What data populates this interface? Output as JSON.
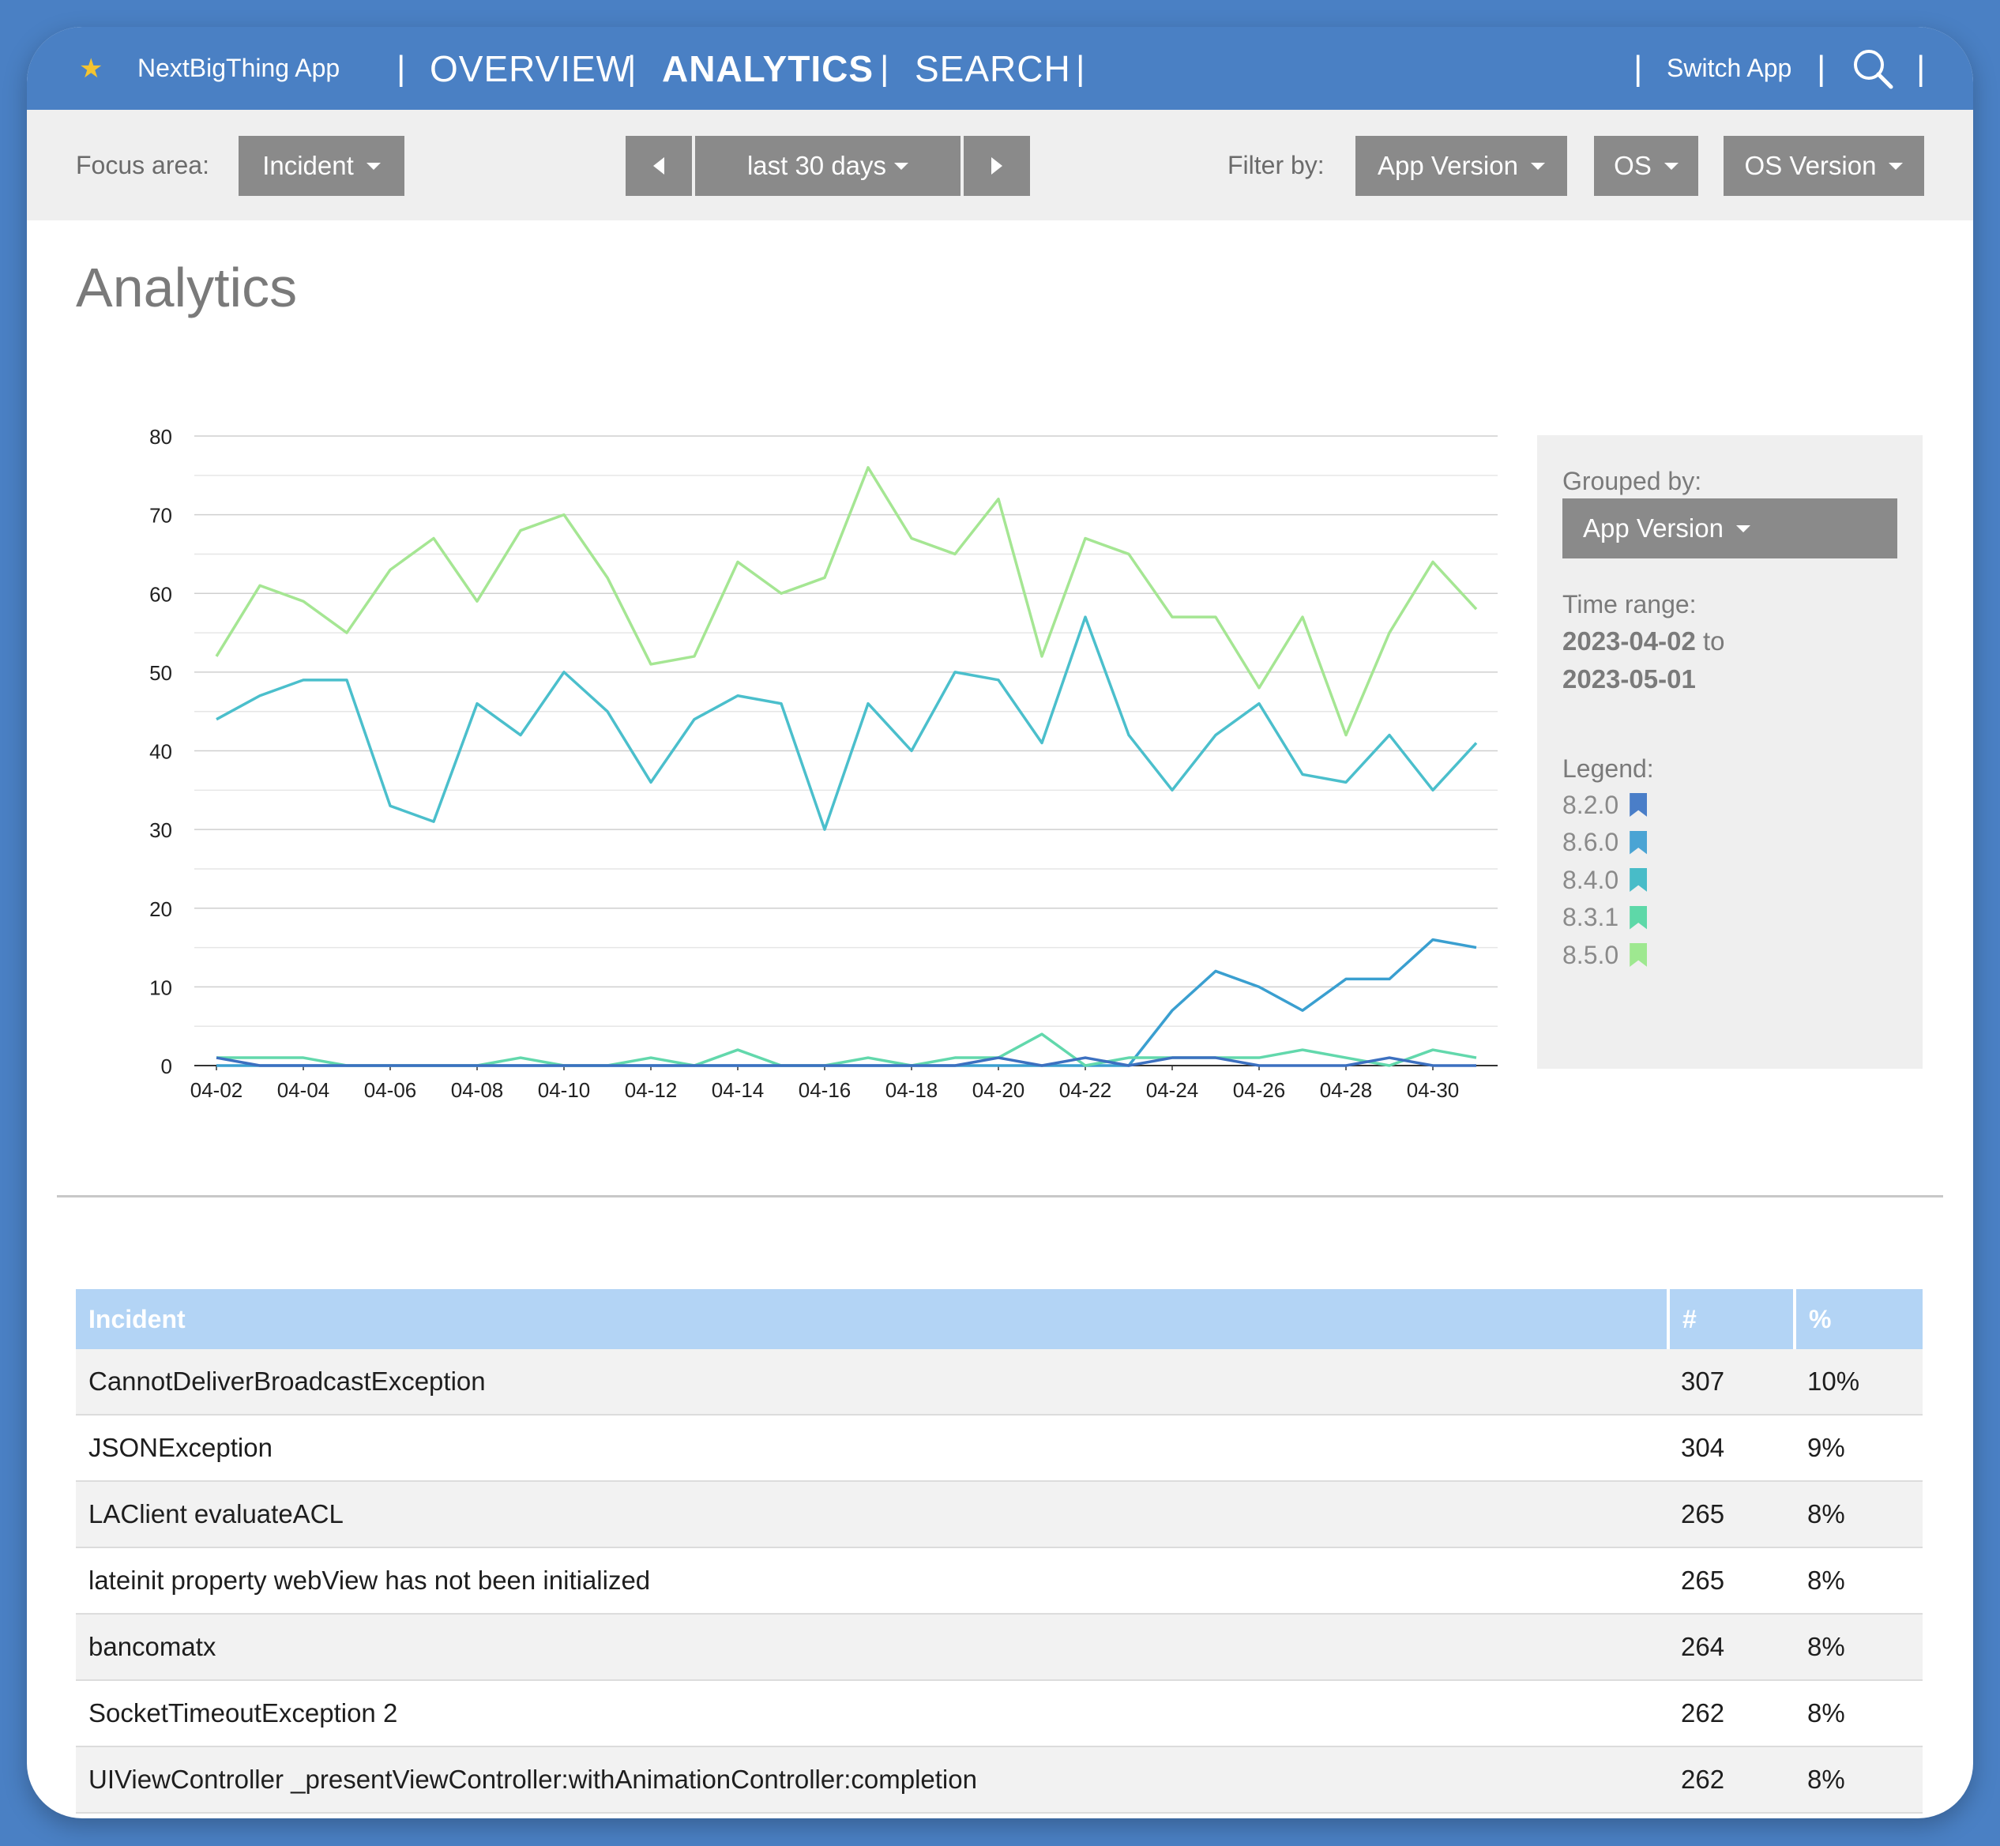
{
  "app": {
    "name": "NextBigThing App",
    "star_icon": "star-icon"
  },
  "nav": {
    "items": [
      "OVERVIEW",
      "ANALYTICS",
      "SEARCH"
    ],
    "active": "ANALYTICS",
    "switch_label": "Switch App",
    "search_icon": "search-icon"
  },
  "filters": {
    "focus_label": "Focus area:",
    "focus_value": "Incident",
    "period_value": "last 30 days",
    "filter_label": "Filter by:",
    "filter_buttons": [
      "App Version",
      "OS",
      "OS Version"
    ]
  },
  "page": {
    "title": "Analytics"
  },
  "side": {
    "grouped_label": "Grouped by:",
    "grouped_value": "App Version",
    "time_label": "Time range:",
    "time_start": "2023-04-02",
    "time_to": "to",
    "time_end": "2023-05-01",
    "legend_label": "Legend:",
    "legend": [
      {
        "name": "8.2.0",
        "color": "#4a7ec8"
      },
      {
        "name": "8.6.0",
        "color": "#4aa4d4"
      },
      {
        "name": "8.4.0",
        "color": "#48bcc8"
      },
      {
        "name": "8.3.1",
        "color": "#5ed8a8"
      },
      {
        "name": "8.5.0",
        "color": "#9ee890"
      }
    ]
  },
  "chart_data": {
    "type": "line",
    "ylim": [
      0,
      80
    ],
    "yticks": [
      0,
      10,
      20,
      30,
      40,
      50,
      60,
      70,
      80
    ],
    "grid": true,
    "x": [
      "04-02",
      "04-03",
      "04-04",
      "04-05",
      "04-06",
      "04-07",
      "04-08",
      "04-09",
      "04-10",
      "04-11",
      "04-12",
      "04-13",
      "04-14",
      "04-15",
      "04-16",
      "04-17",
      "04-18",
      "04-19",
      "04-20",
      "04-21",
      "04-22",
      "04-23",
      "04-24",
      "04-25",
      "04-26",
      "04-27",
      "04-28",
      "04-29",
      "04-30",
      "05-01"
    ],
    "xticks": [
      "04-02",
      "04-04",
      "04-06",
      "04-08",
      "04-10",
      "04-12",
      "04-14",
      "04-16",
      "04-18",
      "04-20",
      "04-22",
      "04-24",
      "04-26",
      "04-28",
      "04-30"
    ],
    "series": [
      {
        "name": "8.5.0",
        "color": "#a5e693",
        "values": [
          52,
          61,
          59,
          55,
          63,
          67,
          59,
          68,
          70,
          62,
          51,
          52,
          64,
          60,
          62,
          76,
          67,
          65,
          72,
          52,
          67,
          65,
          57,
          57,
          48,
          57,
          42,
          55,
          64,
          58
        ]
      },
      {
        "name": "8.4.0",
        "color": "#4bbfcc",
        "values": [
          44,
          47,
          49,
          49,
          33,
          31,
          46,
          42,
          50,
          45,
          36,
          44,
          47,
          46,
          30,
          46,
          40,
          50,
          49,
          41,
          57,
          42,
          35,
          42,
          46,
          37,
          36,
          42,
          35,
          41
        ]
      },
      {
        "name": "8.6.0",
        "color": "#3a9fd0",
        "values": [
          0,
          0,
          0,
          0,
          0,
          0,
          0,
          0,
          0,
          0,
          0,
          0,
          0,
          0,
          0,
          0,
          0,
          0,
          0,
          0,
          0,
          0,
          7,
          12,
          10,
          7,
          11,
          11,
          16,
          15
        ]
      },
      {
        "name": "8.3.1",
        "color": "#62d8ac",
        "values": [
          1,
          1,
          1,
          0,
          0,
          0,
          0,
          1,
          0,
          0,
          1,
          0,
          2,
          0,
          0,
          1,
          0,
          1,
          1,
          4,
          0,
          1,
          1,
          1,
          1,
          2,
          1,
          0,
          2,
          1
        ]
      },
      {
        "name": "8.2.0",
        "color": "#3c70c0",
        "values": [
          1,
          0,
          0,
          0,
          0,
          0,
          0,
          0,
          0,
          0,
          0,
          0,
          0,
          0,
          0,
          0,
          0,
          0,
          1,
          0,
          1,
          0,
          1,
          1,
          0,
          0,
          0,
          1,
          0,
          0
        ]
      }
    ]
  },
  "table": {
    "headers": [
      "Incident",
      "#",
      "%"
    ],
    "rows": [
      [
        "CannotDeliverBroadcastException",
        "307",
        "10%"
      ],
      [
        "JSONException",
        "304",
        "9%"
      ],
      [
        "LAClient evaluateACL",
        "265",
        "8%"
      ],
      [
        "lateinit property webView has not been initialized",
        "265",
        "8%"
      ],
      [
        "bancomatx",
        "264",
        "8%"
      ],
      [
        "SocketTimeoutException 2",
        "262",
        "8%"
      ],
      [
        "UIViewController _presentViewController:withAnimationController:completion",
        "262",
        "8%"
      ]
    ]
  }
}
